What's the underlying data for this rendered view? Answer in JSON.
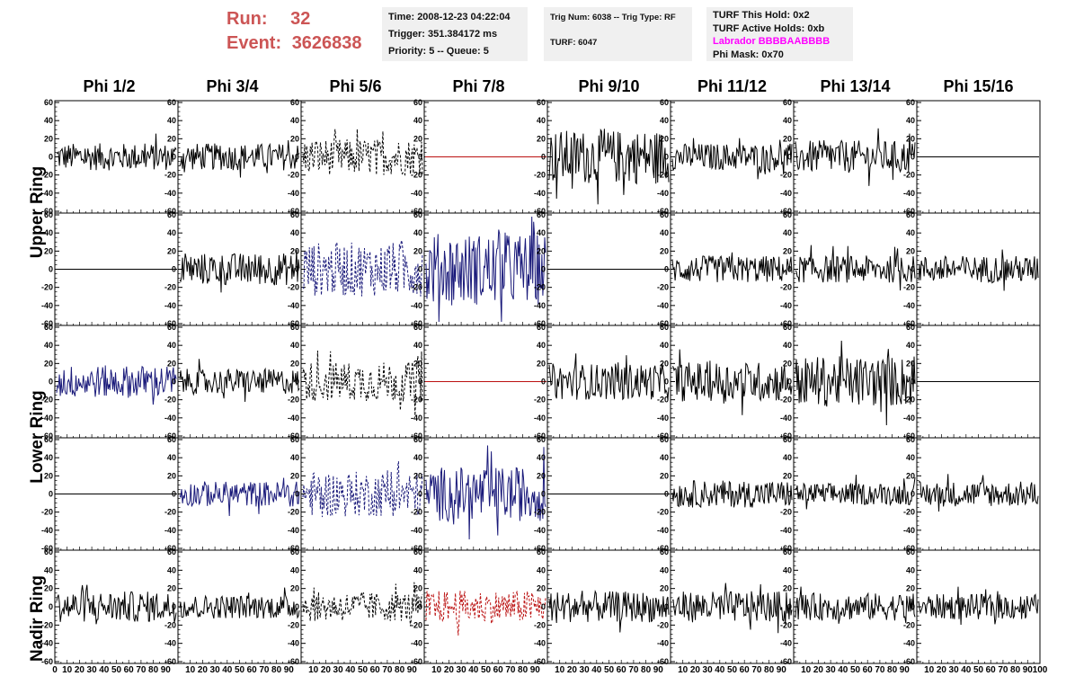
{
  "header": {
    "run_label": "Run:",
    "run_value": "32",
    "event_label": "Event:",
    "event_value": "3626838"
  },
  "info_time": {
    "line1": "Time: 2008-12-23 04:22:04",
    "line2": "Trigger: 351.384172 ms",
    "line3": "Priority: 5 -- Queue: 5"
  },
  "info_trig": {
    "line1": "Trig Num: 6038 -- Trig Type: RF",
    "line2": "TURF: 6047"
  },
  "info_turf": {
    "line1": "TURF This Hold: 0x2",
    "line2": "TURF Active Holds: 0xb",
    "line3": "Labrador BBBBAABBBB",
    "line4": "Phi Mask: 0x70"
  },
  "columns": [
    "Phi 1/2",
    "Phi 3/4",
    "Phi 5/6",
    "Phi 7/8",
    "Phi 9/10",
    "Phi 11/12",
    "Phi 13/14",
    "Phi 15/16"
  ],
  "rings": [
    "Upper Ring",
    "Lower Ring",
    "Nadir Ring"
  ],
  "axis": {
    "y_ticks": [
      "60",
      "40",
      "20",
      "0",
      "-20",
      "-40",
      "-60"
    ],
    "x_ticks": [
      "0",
      "10",
      "20",
      "30",
      "40",
      "50",
      "60",
      "70",
      "80",
      "90",
      "100"
    ],
    "y_range": [
      -60,
      60
    ],
    "x_range": [
      0,
      100
    ]
  },
  "colors": {
    "black": "#000000",
    "blue": "#1a1a7a",
    "red": "#bb1111",
    "header_red": "#cc5555",
    "magenta": "#ff00ff"
  },
  "panels": [
    [
      "black",
      "black",
      "black-dash",
      "red-flat",
      "black",
      "black",
      "black",
      "black-flat"
    ],
    [
      "black-flat",
      "black",
      "blue-dash",
      "blue",
      "black-flat",
      "black",
      "black",
      "black"
    ],
    [
      "blue",
      "black",
      "black-dash",
      "red-flat",
      "black",
      "black",
      "black",
      "black-flat"
    ],
    [
      "black-flat",
      "blue",
      "blue-dash",
      "blue",
      "black-flat",
      "black",
      "black",
      "black"
    ],
    [
      "black",
      "black",
      "black-dash",
      "red-dash",
      "black",
      "black",
      "black",
      "black"
    ]
  ],
  "amplitudes": [
    [
      15,
      15,
      20,
      0,
      30,
      15,
      18,
      0
    ],
    [
      0,
      18,
      30,
      40,
      0,
      15,
      15,
      15
    ],
    [
      18,
      14,
      22,
      0,
      20,
      22,
      28,
      0
    ],
    [
      0,
      14,
      25,
      30,
      0,
      15,
      12,
      14
    ],
    [
      17,
      13,
      16,
      18,
      17,
      17,
      15,
      14
    ]
  ]
}
